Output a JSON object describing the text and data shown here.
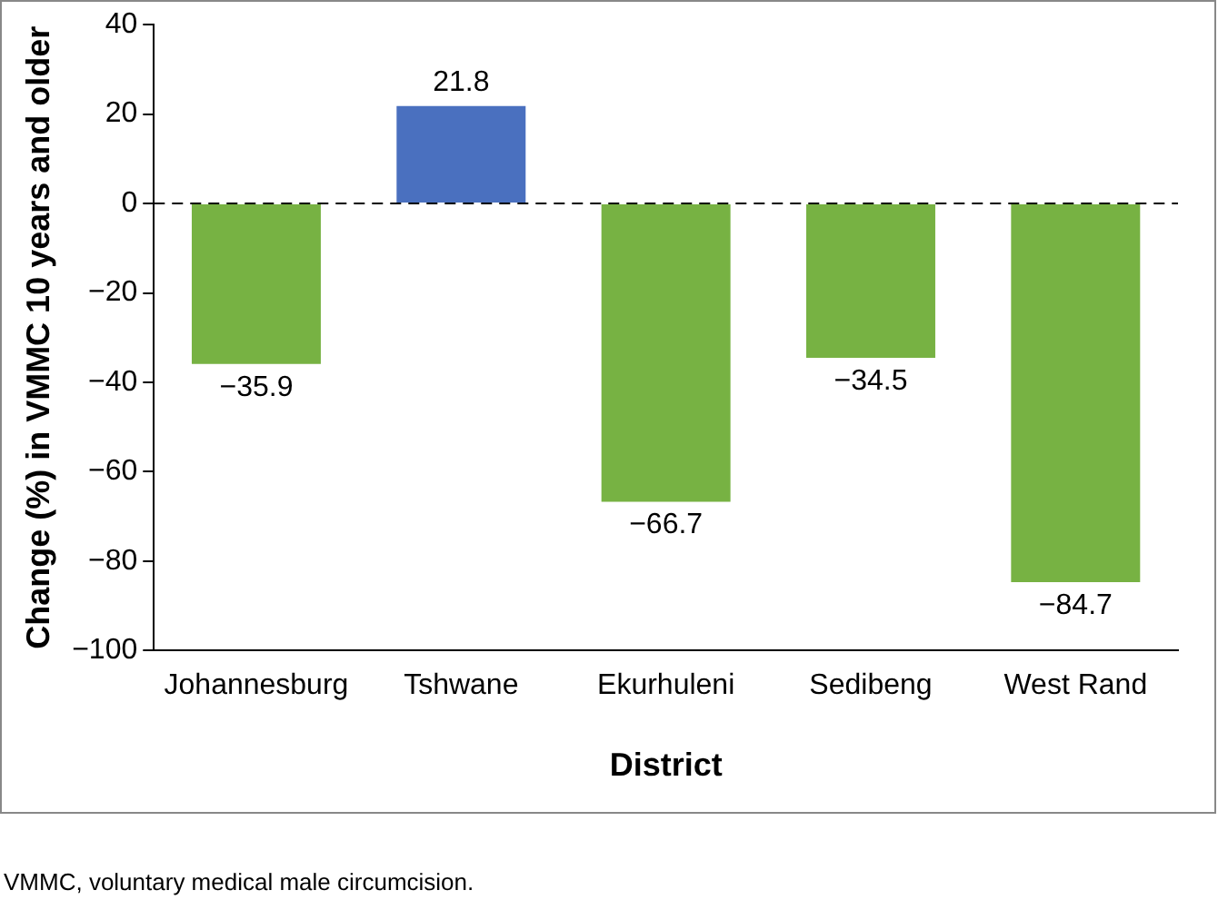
{
  "chart_data": {
    "type": "bar",
    "xlabel": "District",
    "ylabel": "Change (%) in VMMC 10 years and older",
    "categories": [
      "Johannesburg",
      "Tshwane",
      "Ekurhuleni",
      "Sedibeng",
      "West Rand"
    ],
    "values": [
      -35.9,
      21.8,
      -66.7,
      -34.5,
      -84.7
    ],
    "colors": [
      "#77b243",
      "#4a70bf",
      "#77b243",
      "#77b243",
      "#77b243"
    ],
    "value_labels": [
      "−35.9",
      "21.8",
      "−66.7",
      "−34.5",
      "−84.7"
    ],
    "ylim": [
      -100,
      40
    ],
    "yticks": [
      {
        "value": -100,
        "label": "−100"
      },
      {
        "value": -80,
        "label": "−80"
      },
      {
        "value": -60,
        "label": "−60"
      },
      {
        "value": -40,
        "label": "−40"
      },
      {
        "value": -20,
        "label": "−20"
      },
      0,
      20,
      40
    ],
    "ref_lines": [
      {
        "axis": "y",
        "value": 0,
        "line_style": "dashed",
        "color": "#000000"
      }
    ],
    "grid": false,
    "legend": false,
    "annotations": [
      "VMMC, voluntary medical male circumcision."
    ]
  }
}
